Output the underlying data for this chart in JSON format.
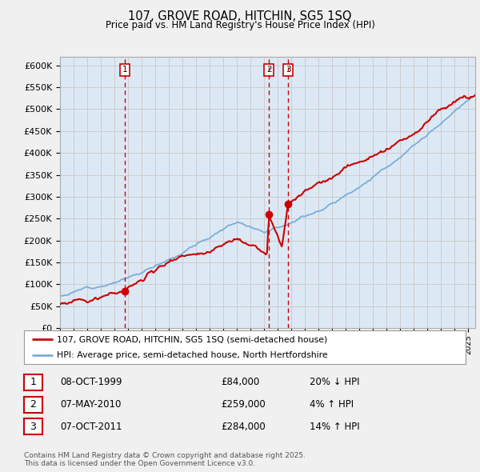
{
  "title": "107, GROVE ROAD, HITCHIN, SG5 1SQ",
  "subtitle": "Price paid vs. HM Land Registry's House Price Index (HPI)",
  "ylim": [
    0,
    620000
  ],
  "xlim_start": 1995.0,
  "xlim_end": 2025.5,
  "red_line_color": "#cc0000",
  "blue_line_color": "#7aaddb",
  "sale_marker_color": "#cc0000",
  "vline_color": "#cc0000",
  "grid_color": "#cccccc",
  "background_color": "#f0f0f0",
  "plot_bg_color": "#dce9f5",
  "legend_label_red": "107, GROVE ROAD, HITCHIN, SG5 1SQ (semi-detached house)",
  "legend_label_blue": "HPI: Average price, semi-detached house, North Hertfordshire",
  "sales": [
    {
      "num": 1,
      "date_x": 1999.77,
      "price": 84000,
      "label": "08-OCT-1999",
      "price_str": "£84,000",
      "pct": "20% ↓ HPI"
    },
    {
      "num": 2,
      "date_x": 2010.35,
      "price": 259000,
      "label": "07-MAY-2010",
      "price_str": "£259,000",
      "pct": "4% ↑ HPI"
    },
    {
      "num": 3,
      "date_x": 2011.77,
      "price": 284000,
      "label": "07-OCT-2011",
      "price_str": "£284,000",
      "pct": "14% ↑ HPI"
    }
  ],
  "footnote": "Contains HM Land Registry data © Crown copyright and database right 2025.\nThis data is licensed under the Open Government Licence v3.0."
}
